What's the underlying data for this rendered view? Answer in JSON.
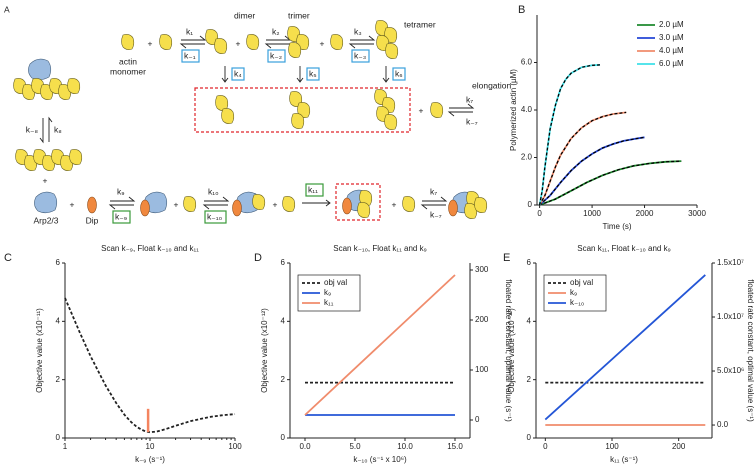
{
  "diagram": {
    "panel": "A",
    "monomer_label": [
      "actin",
      "monomer"
    ],
    "dimer": "dimer",
    "trimer": "trimer",
    "tetramer": "tetramer",
    "elongation": "elongation",
    "arp": "Arp2/3",
    "dip": "Dip",
    "plus": "+",
    "rates": {
      "k1": "k₁",
      "km1": "k₋₁",
      "k2": "k₂",
      "km2": "k₋₂",
      "k3": "k₃",
      "km3": "k₋₃",
      "k4": "k₄",
      "k5": "k₅",
      "k6": "k₆",
      "k7": "k₇",
      "km7": "k₋₇",
      "k8": "k₈",
      "km8": "k₋₈",
      "k9": "k₉",
      "km9": "k₋₉",
      "k10": "k₁₀",
      "km10": "k₋₁₀",
      "k11": "k₁₁"
    }
  },
  "chart_data": [
    {
      "panel": "B",
      "type": "line",
      "xlabel": "Time (s)",
      "ylabel": "Polymerized actin (µM)",
      "xlim": [
        -50,
        3000
      ],
      "xticks": [
        0,
        1000,
        2000,
        3000
      ],
      "ylim": [
        0,
        8
      ],
      "yticks": [
        0,
        {
          "value": 2,
          "label": "2.0"
        },
        {
          "value": 4,
          "label": "4.0"
        },
        {
          "value": 6,
          "label": "6.0"
        }
      ],
      "legend": "upper right",
      "fit_color": "#000000",
      "series": [
        {
          "name": "2.0 µM",
          "color": "#1e8a2e",
          "x": [
            0,
            300,
            600,
            900,
            1200,
            1500,
            1800,
            2100,
            2400,
            2700
          ],
          "values": [
            0,
            0.25,
            0.6,
            0.95,
            1.25,
            1.48,
            1.65,
            1.75,
            1.82,
            1.85
          ]
        },
        {
          "name": "3.0 µM",
          "color": "#2446d6",
          "x": [
            0,
            200,
            400,
            600,
            800,
            1000,
            1200,
            1400,
            1600,
            1800,
            2000
          ],
          "values": [
            0,
            0.4,
            0.95,
            1.45,
            1.85,
            2.15,
            2.4,
            2.57,
            2.7,
            2.78,
            2.85
          ]
        },
        {
          "name": "4.0 µM",
          "color": "#f08c6c",
          "x": [
            0,
            100,
            200,
            300,
            400,
            600,
            800,
            1000,
            1200,
            1400,
            1650
          ],
          "values": [
            0,
            0.4,
            1.0,
            1.6,
            2.1,
            2.8,
            3.25,
            3.55,
            3.72,
            3.83,
            3.9
          ]
        },
        {
          "name": "6.0 µM",
          "color": "#3ee0e8",
          "x": [
            0,
            50,
            100,
            200,
            300,
            400,
            500,
            600,
            800,
            1000,
            1150
          ],
          "values": [
            0,
            0.6,
            1.6,
            3.2,
            4.2,
            4.9,
            5.3,
            5.55,
            5.8,
            5.88,
            5.9
          ]
        }
      ]
    },
    {
      "panel": "C",
      "type": "line",
      "title": "Scan k₋₉, Float k₋₁₀ and k₁₁",
      "xlabel": "k₋₉ (s⁻¹)",
      "ylabel": "Objective value (x10⁻¹¹)",
      "xscale": "log",
      "xlim": [
        1,
        100
      ],
      "xticks": [
        1,
        10,
        100
      ],
      "ylim": [
        0,
        6
      ],
      "yticks": [
        0,
        2,
        4,
        6
      ],
      "x": [
        1,
        1.5,
        2,
        3,
        4,
        5,
        6,
        7,
        8,
        9,
        10,
        12,
        15,
        20,
        30,
        50,
        70,
        100
      ],
      "series": [
        {
          "color": "#222222",
          "dash": true,
          "values": [
            4.8,
            3.6,
            2.8,
            1.8,
            1.2,
            0.8,
            0.55,
            0.38,
            0.28,
            0.22,
            0.2,
            0.22,
            0.3,
            0.42,
            0.58,
            0.72,
            0.78,
            0.82
          ]
        }
      ],
      "highlight": {
        "x": 9.5,
        "y": [
          0.2,
          1.0
        ],
        "color": "#f4845f"
      }
    },
    {
      "panel": "D",
      "type": "line",
      "title": "Scan k₋₁₀, Float k₁₁ and k₉",
      "xlabel": "k₋₁₀ (s⁻¹ x 10⁶)",
      "ylabel": "Objective value (x10⁻¹²)",
      "y2label": "floated rate constant, optimal value (s⁻¹)",
      "xlim": [
        -1.5,
        16.5
      ],
      "xticks": [
        {
          "value": 0,
          "label": "0.0"
        },
        {
          "value": 5,
          "label": "5.0"
        },
        {
          "value": 10,
          "label": "10.0"
        },
        {
          "value": 15,
          "label": "15.0"
        }
      ],
      "ylim": [
        0,
        6
      ],
      "yticks": [
        0,
        2,
        4,
        6
      ],
      "y2lim": [
        -36,
        314
      ],
      "y2ticks": [
        0,
        100,
        200,
        300
      ],
      "legend": "upper left",
      "legend_frame": true,
      "x": [
        0,
        15
      ],
      "series": [
        {
          "name": "obj val",
          "color": "#222222",
          "dash": true,
          "values": [
            1.9,
            1.9
          ]
        },
        {
          "name": "k₉",
          "color": "#2456d6",
          "axis": "y2",
          "values": [
            10,
            10
          ]
        },
        {
          "name": "k₁₁",
          "color": "#f08c6c",
          "axis": "y2",
          "values": [
            10,
            290
          ]
        }
      ]
    },
    {
      "panel": "E",
      "type": "line",
      "title": "Scan k₁₁, Float k₋₁₀ and k₉",
      "xlabel": "k₁₁ (s⁻¹)",
      "ylabel": "Objective value (x10⁻¹²)",
      "y2label": "floated rate constant, optimal value (s⁻¹)",
      "xlim": [
        -14,
        250
      ],
      "xticks": [
        0,
        100,
        200
      ],
      "ylim": [
        0,
        6
      ],
      "yticks": [
        0,
        2,
        4,
        6
      ],
      "y2lim": [
        -1200000,
        15000000
      ],
      "y2ticks": [
        {
          "value": 0,
          "label": "0.0"
        },
        {
          "value": 5000000,
          "label": "5.0x10⁶"
        },
        {
          "value": 10000000,
          "label": "1.0x10⁷"
        },
        {
          "value": 15000000,
          "label": "1.5x10⁷"
        }
      ],
      "legend": "upper left",
      "legend_frame": true,
      "x": [
        0,
        240
      ],
      "series": [
        {
          "name": "obj val",
          "color": "#222222",
          "dash": true,
          "values": [
            1.9,
            1.9
          ]
        },
        {
          "name": "k₉",
          "color": "#f08c6c",
          "axis": "y2",
          "values": [
            0,
            0
          ]
        },
        {
          "name": "k₋₁₀",
          "color": "#2456d6",
          "axis": "y2",
          "values": [
            500000,
            13900000
          ]
        }
      ]
    }
  ]
}
